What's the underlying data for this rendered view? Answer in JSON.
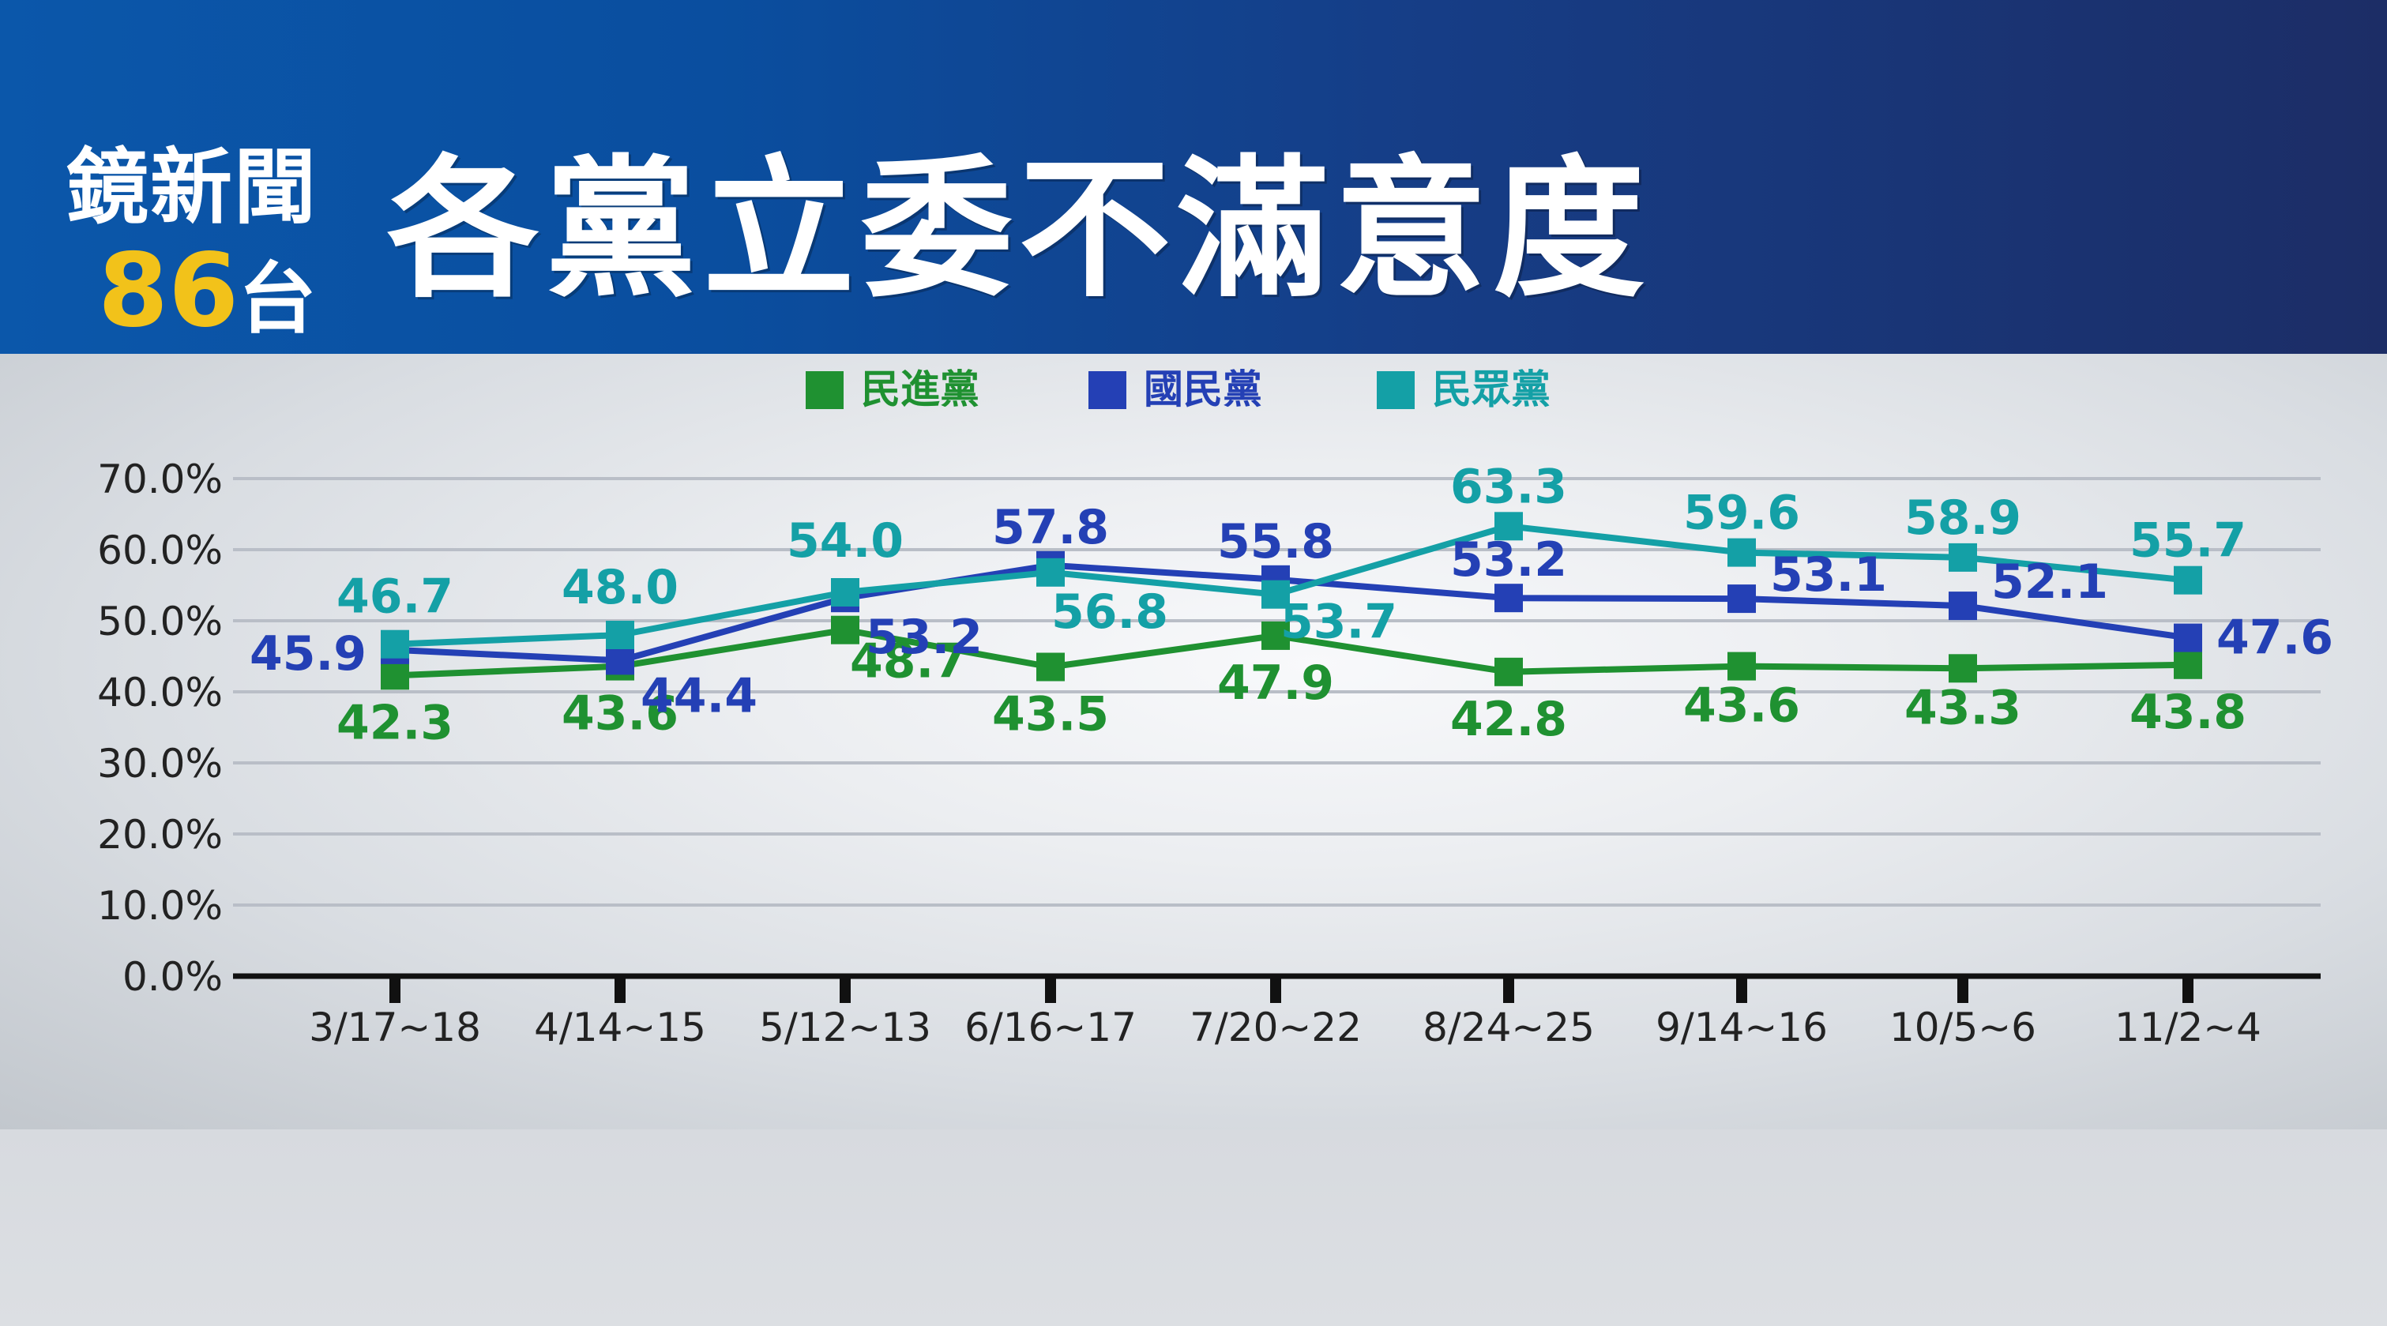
{
  "header": {
    "logo_line1": "鏡新聞",
    "logo_number": "86",
    "logo_suffix": "台"
  },
  "colors": {
    "dpp": "#1f9131",
    "kmt": "#2440b5",
    "tpp": "#14a0a6",
    "number_yellow": "#f2c21a"
  },
  "chart_data": {
    "type": "line",
    "title": "各黨立委不滿意度",
    "xlabel": "",
    "ylabel": "",
    "categories": [
      "3/17~18",
      "4/14~15",
      "5/12~13",
      "6/16~17",
      "7/20~22",
      "8/24~25",
      "9/14~16",
      "10/5~6",
      "11/2~4"
    ],
    "ylim": [
      0,
      70
    ],
    "yticks": [
      "0.0%",
      "10.0%",
      "20.0%",
      "30.0%",
      "40.0%",
      "50.0%",
      "60.0%",
      "70.0%"
    ],
    "grid": true,
    "legend_position": "top-center",
    "series": [
      {
        "key": "dpp",
        "name": "民進黨",
        "color": "#1f9131",
        "values": [
          42.3,
          43.6,
          48.7,
          43.5,
          47.9,
          42.8,
          43.6,
          43.3,
          43.8
        ],
        "labels": [
          "42.3",
          "43.6",
          "48.7",
          "43.5",
          "47.9",
          "42.8",
          "43.6",
          "43.3",
          "43.8"
        ]
      },
      {
        "key": "kmt",
        "name": "國民黨",
        "color": "#2440b5",
        "values": [
          45.9,
          44.4,
          53.2,
          57.8,
          55.8,
          53.2,
          53.1,
          52.1,
          47.6
        ],
        "labels": [
          "45.9",
          "44.4",
          "53.2",
          "57.8",
          "55.8",
          "53.2",
          "53.1",
          "52.1",
          "47.6"
        ]
      },
      {
        "key": "tpp",
        "name": "民眾黨",
        "color": "#14a0a6",
        "values": [
          46.7,
          48.0,
          54.0,
          56.8,
          53.7,
          63.3,
          59.6,
          58.9,
          55.7
        ],
        "labels": [
          "46.7",
          "48.0",
          "54.0",
          "56.8",
          "53.7",
          "63.3",
          "59.6",
          "58.9",
          "55.7"
        ]
      }
    ]
  }
}
